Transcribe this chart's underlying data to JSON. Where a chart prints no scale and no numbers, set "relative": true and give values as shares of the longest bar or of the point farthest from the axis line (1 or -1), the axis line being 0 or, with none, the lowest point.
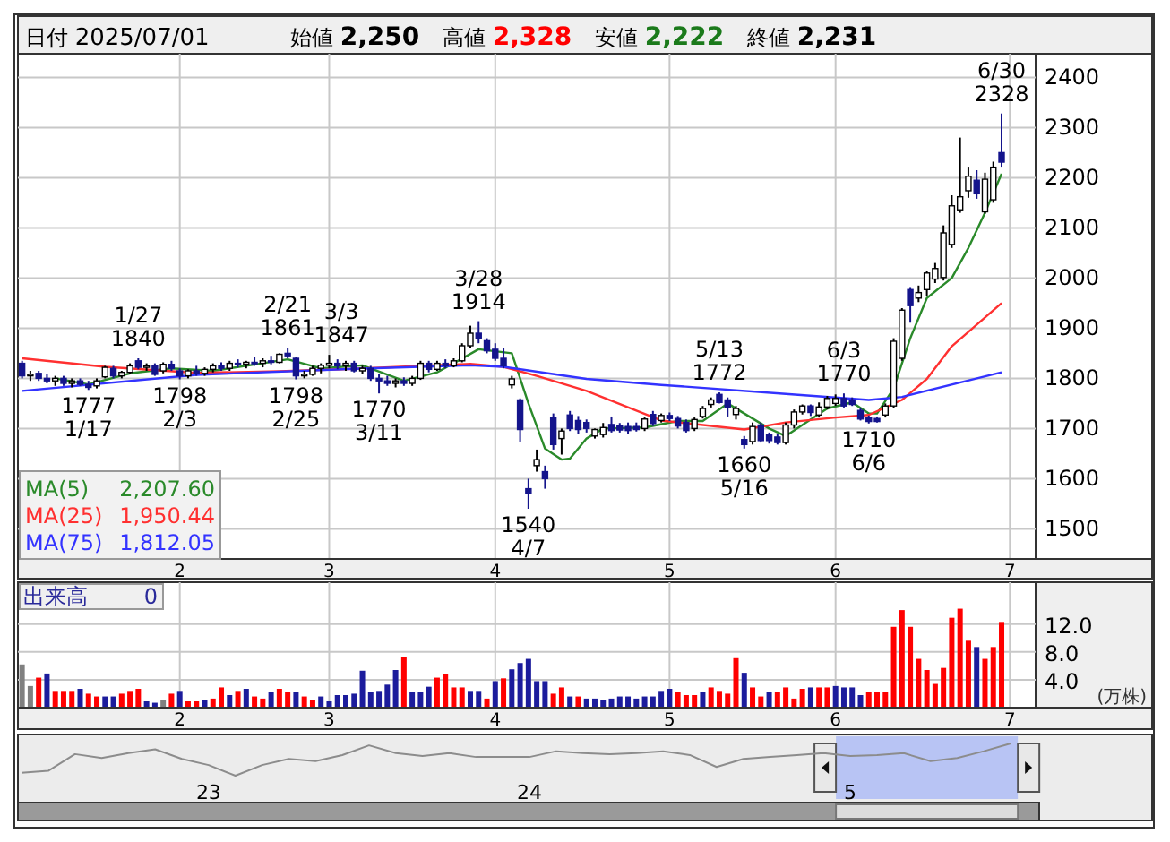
{
  "chart_data": [
    {
      "type": "candlestick",
      "categories": [
        null,
        null,
        null,
        null,
        null,
        null,
        null,
        null,
        null,
        null,
        null,
        null,
        null,
        null,
        null,
        null,
        null,
        null,
        null,
        "2",
        null,
        null,
        null,
        null,
        null,
        null,
        null,
        null,
        null,
        null,
        null,
        null,
        null,
        null,
        null,
        null,
        null,
        "3",
        null,
        null,
        null,
        null,
        null,
        null,
        null,
        null,
        null,
        null,
        null,
        null,
        null,
        null,
        null,
        null,
        null,
        null,
        null,
        "4",
        null,
        null,
        null,
        null,
        null,
        null,
        null,
        null,
        null,
        null,
        null,
        null,
        null,
        null,
        null,
        null,
        null,
        null,
        null,
        null,
        "5",
        null,
        null,
        null,
        null,
        null,
        null,
        null,
        null,
        null,
        null,
        null,
        null,
        null,
        null,
        null,
        null,
        null,
        null,
        null,
        "6",
        null,
        null,
        null,
        null,
        null,
        null,
        null,
        null,
        null,
        null,
        null,
        null,
        null,
        null,
        null,
        null,
        null,
        null,
        null,
        null,
        "7"
      ],
      "ohlc": [
        [
          1830,
          1835,
          1800,
          1805
        ],
        [
          1805,
          1815,
          1795,
          1808
        ],
        [
          1810,
          1815,
          1795,
          1800
        ],
        [
          1800,
          1808,
          1790,
          1795
        ],
        [
          1795,
          1805,
          1785,
          1800
        ],
        [
          1800,
          1805,
          1785,
          1790
        ],
        [
          1790,
          1800,
          1782,
          1795
        ],
        [
          1795,
          1800,
          1785,
          1788
        ],
        [
          1788,
          1795,
          1777,
          1782
        ],
        [
          1785,
          1800,
          1780,
          1795
        ],
        [
          1803,
          1825,
          1800,
          1822
        ],
        [
          1820,
          1825,
          1800,
          1805
        ],
        [
          1805,
          1815,
          1800,
          1812
        ],
        [
          1812,
          1830,
          1808,
          1825
        ],
        [
          1835,
          1840,
          1818,
          1822
        ],
        [
          1822,
          1830,
          1815,
          1825
        ],
        [
          1825,
          1830,
          1805,
          1808
        ],
        [
          1815,
          1832,
          1810,
          1828
        ],
        [
          1828,
          1835,
          1815,
          1820
        ],
        [
          1815,
          1820,
          1798,
          1805
        ],
        [
          1805,
          1818,
          1800,
          1815
        ],
        [
          1815,
          1825,
          1805,
          1810
        ],
        [
          1810,
          1822,
          1805,
          1818
        ],
        [
          1818,
          1830,
          1812,
          1825
        ],
        [
          1825,
          1832,
          1815,
          1820
        ],
        [
          1820,
          1835,
          1815,
          1830
        ],
        [
          1830,
          1838,
          1822,
          1828
        ],
        [
          1828,
          1835,
          1820,
          1832
        ],
        [
          1832,
          1842,
          1825,
          1830
        ],
        [
          1830,
          1840,
          1822,
          1835
        ],
        [
          1835,
          1845,
          1828,
          1832
        ],
        [
          1832,
          1850,
          1830,
          1848
        ],
        [
          1850,
          1861,
          1840,
          1845
        ],
        [
          1840,
          1842,
          1798,
          1805
        ],
        [
          1805,
          1815,
          1800,
          1808
        ],
        [
          1808,
          1825,
          1805,
          1820
        ],
        [
          1820,
          1830,
          1810,
          1826
        ],
        [
          1826,
          1847,
          1820,
          1830
        ],
        [
          1830,
          1838,
          1818,
          1825
        ],
        [
          1825,
          1835,
          1815,
          1830
        ],
        [
          1830,
          1835,
          1812,
          1815
        ],
        [
          1815,
          1825,
          1808,
          1820
        ],
        [
          1820,
          1825,
          1795,
          1800
        ],
        [
          1800,
          1808,
          1770,
          1795
        ],
        [
          1795,
          1805,
          1785,
          1790
        ],
        [
          1790,
          1800,
          1782,
          1795
        ],
        [
          1795,
          1802,
          1785,
          1790
        ],
        [
          1790,
          1805,
          1785,
          1800
        ],
        [
          1800,
          1835,
          1797,
          1830
        ],
        [
          1830,
          1835,
          1812,
          1818
        ],
        [
          1818,
          1835,
          1815,
          1830
        ],
        [
          1830,
          1838,
          1820,
          1825
        ],
        [
          1825,
          1840,
          1822,
          1835
        ],
        [
          1835,
          1870,
          1832,
          1865
        ],
        [
          1865,
          1905,
          1860,
          1890
        ],
        [
          1890,
          1914,
          1870,
          1880
        ],
        [
          1875,
          1880,
          1850,
          1855
        ],
        [
          1858,
          1870,
          1835,
          1840
        ],
        [
          1840,
          1860,
          1820,
          1825
        ],
        [
          1787,
          1805,
          1780,
          1799
        ],
        [
          1757,
          1760,
          1674,
          1698
        ],
        [
          1580,
          1600,
          1540,
          1570
        ],
        [
          1626,
          1658,
          1614,
          1638
        ],
        [
          1614,
          1626,
          1580,
          1600
        ],
        [
          1722,
          1730,
          1658,
          1668
        ],
        [
          1680,
          1700,
          1648,
          1695
        ],
        [
          1727,
          1735,
          1695,
          1700
        ],
        [
          1716,
          1725,
          1690,
          1698
        ],
        [
          1712,
          1718,
          1692,
          1700
        ],
        [
          1685,
          1700,
          1680,
          1698
        ],
        [
          1688,
          1711,
          1682,
          1702
        ],
        [
          1708,
          1724,
          1692,
          1696
        ],
        [
          1705,
          1711,
          1692,
          1697
        ],
        [
          1704,
          1712,
          1690,
          1696
        ],
        [
          1704,
          1712,
          1694,
          1698
        ],
        [
          1700,
          1722,
          1695,
          1719
        ],
        [
          1728,
          1735,
          1705,
          1710
        ],
        [
          1716,
          1730,
          1712,
          1726
        ],
        [
          1726,
          1732,
          1715,
          1720
        ],
        [
          1720,
          1725,
          1700,
          1705
        ],
        [
          1712,
          1718,
          1692,
          1696
        ],
        [
          1700,
          1722,
          1695,
          1718
        ],
        [
          1724,
          1745,
          1720,
          1740
        ],
        [
          1748,
          1762,
          1742,
          1757
        ],
        [
          1768,
          1772,
          1750,
          1752
        ],
        [
          1757,
          1762,
          1724,
          1743
        ],
        [
          1728,
          1745,
          1718,
          1740
        ],
        [
          1678,
          1685,
          1660,
          1668
        ],
        [
          1674,
          1712,
          1668,
          1704
        ],
        [
          1707,
          1712,
          1672,
          1676
        ],
        [
          1688,
          1692,
          1670,
          1676
        ],
        [
          1683,
          1690,
          1668,
          1672
        ],
        [
          1672,
          1712,
          1668,
          1707
        ],
        [
          1707,
          1738,
          1700,
          1733
        ],
        [
          1733,
          1748,
          1728,
          1745
        ],
        [
          1745,
          1748,
          1725,
          1732
        ],
        [
          1727,
          1752,
          1722,
          1743
        ],
        [
          1743,
          1765,
          1738,
          1760
        ],
        [
          1750,
          1768,
          1745,
          1760
        ],
        [
          1760,
          1770,
          1742,
          1745
        ],
        [
          1757,
          1762,
          1745,
          1748
        ],
        [
          1736,
          1740,
          1716,
          1719
        ],
        [
          1722,
          1726,
          1710,
          1714
        ],
        [
          1720,
          1724,
          1712,
          1714
        ],
        [
          1727,
          1750,
          1722,
          1745
        ],
        [
          1745,
          1880,
          1740,
          1874
        ],
        [
          1840,
          1940,
          1835,
          1936
        ],
        [
          1977,
          1982,
          1911,
          1945
        ],
        [
          1960,
          1985,
          1952,
          1971
        ],
        [
          1977,
          2015,
          1965,
          2010
        ],
        [
          1998,
          2030,
          1990,
          2019
        ],
        [
          2001,
          2105,
          1995,
          2090
        ],
        [
          2067,
          2165,
          2060,
          2144
        ],
        [
          2136,
          2280,
          2130,
          2162
        ],
        [
          2174,
          2222,
          2160,
          2203
        ],
        [
          2195,
          2215,
          2158,
          2168
        ],
        [
          2132,
          2210,
          2128,
          2197
        ],
        [
          2156,
          2232,
          2150,
          2221
        ],
        [
          2250,
          2328,
          2222,
          2231
        ],
        null
      ],
      "series": [
        {
          "name": "MA(5) 2,207.60",
          "type": "line",
          "color": "#2a8a2a",
          "values": [
            null,
            null,
            null,
            null,
            1800,
            null,
            null,
            null,
            1788,
            null,
            null,
            null,
            null,
            1810,
            null,
            null,
            null,
            null,
            1820,
            null,
            null,
            null,
            null,
            1815,
            null,
            null,
            null,
            1825,
            null,
            null,
            null,
            null,
            1838,
            null,
            null,
            null,
            1820,
            null,
            null,
            null,
            null,
            1826,
            null,
            null,
            null,
            null,
            1795,
            null,
            null,
            null,
            1812,
            null,
            null,
            null,
            null,
            1858,
            null,
            null,
            null,
            1850,
            null,
            1750,
            null,
            1660,
            null,
            1638,
            1640,
            null,
            1680,
            null,
            1700,
            null,
            null,
            null,
            null,
            1702,
            null,
            null,
            null,
            1715,
            null,
            null,
            1715,
            null,
            null,
            1750,
            null,
            1730,
            null,
            null,
            1700,
            null,
            1685,
            null,
            null,
            null,
            null,
            1740,
            null,
            null,
            1752,
            null,
            1730,
            1730,
            null,
            1780,
            null,
            1880,
            null,
            1960,
            null,
            null,
            2000,
            null,
            2060,
            null,
            2130,
            null,
            2208,
            null
          ]
        },
        {
          "name": "MA(25) 1,950.44",
          "type": "line",
          "color": "#ff3030",
          "values": [
            1840,
            null,
            null,
            null,
            null,
            null,
            null,
            null,
            null,
            null,
            1823,
            null,
            null,
            null,
            null,
            null,
            null,
            null,
            null,
            null,
            null,
            1811,
            null,
            null,
            null,
            null,
            null,
            null,
            null,
            null,
            null,
            1814,
            null,
            null,
            null,
            null,
            null,
            null,
            null,
            null,
            1819,
            null,
            null,
            null,
            null,
            null,
            null,
            null,
            null,
            null,
            null,
            null,
            null,
            null,
            1829,
            null,
            null,
            null,
            1823,
            null,
            null,
            null,
            1805,
            null,
            null,
            null,
            null,
            null,
            1775,
            null,
            null,
            null,
            null,
            null,
            null,
            null,
            null,
            1716,
            null,
            null,
            null,
            null,
            null,
            null,
            null,
            null,
            null,
            1698,
            null,
            null,
            null,
            null,
            1712,
            null,
            null,
            null,
            null,
            null,
            1722,
            null,
            null,
            null,
            1727,
            null,
            null,
            null,
            1757,
            null,
            null,
            1799,
            null,
            null,
            1864,
            null,
            null,
            null,
            null,
            null,
            1950,
            null
          ]
        },
        {
          "name": "MA(75) 1,812.05",
          "type": "line",
          "color": "#3333ff",
          "values": [
            1775,
            null,
            null,
            null,
            null,
            null,
            null,
            null,
            null,
            null,
            null,
            null,
            null,
            null,
            null,
            null,
            null,
            null,
            null,
            null,
            null,
            1807,
            null,
            null,
            null,
            null,
            null,
            null,
            null,
            null,
            null,
            null,
            null,
            null,
            null,
            null,
            null,
            null,
            null,
            null,
            1819,
            null,
            null,
            null,
            null,
            null,
            null,
            null,
            null,
            null,
            null,
            null,
            null,
            null,
            1826,
            null,
            null,
            null,
            1823,
            null,
            null,
            null,
            null,
            null,
            null,
            null,
            null,
            null,
            1799,
            null,
            null,
            null,
            null,
            null,
            null,
            null,
            null,
            1787,
            null,
            null,
            null,
            null,
            null,
            null,
            null,
            null,
            null,
            null,
            null,
            null,
            null,
            null,
            1769,
            null,
            null,
            null,
            null,
            null,
            null,
            null,
            null,
            null,
            1757,
            null,
            null,
            null,
            1763,
            null,
            null,
            null,
            null,
            null,
            null,
            null,
            null,
            null,
            null,
            null,
            1812,
            null
          ]
        }
      ],
      "ylim": [
        1440,
        2440
      ],
      "yticks": [
        1500,
        1600,
        1700,
        1800,
        1900,
        2000,
        2100,
        2200,
        2300,
        2400
      ],
      "grid": true,
      "legend": "bottom left",
      "annotations": [
        "日付 2025/07/01",
        "始値 2,250",
        "高値 2,328",
        "安値 2,222",
        "終値 2,231",
        {
          "text": "1/27\n1840",
          "y": 1840
        },
        {
          "text": "1777\n1/17",
          "y": 1777
        },
        {
          "text": "1798\n2/3",
          "y": 1798
        },
        {
          "text": "2/21\n1861",
          "y": 1861
        },
        {
          "text": "1798\n2/25",
          "y": 1798
        },
        {
          "text": "3/3\n1847",
          "y": 1847
        },
        {
          "text": "1770\n3/11",
          "y": 1770
        },
        {
          "text": "3/28\n1914",
          "y": 1914
        },
        {
          "text": "1540\n4/7",
          "y": 1540
        },
        {
          "text": "5/13\n1772",
          "y": 1772
        },
        {
          "text": "1660\n5/16",
          "y": 1660
        },
        {
          "text": "6/3\n1770",
          "y": 1770
        },
        {
          "text": "1710\n6/6",
          "y": 1710
        },
        {
          "text": "6/30\n2328",
          "y": 2328
        }
      ]
    },
    {
      "type": "bar",
      "title": "出来高",
      "annotations": [
        "0"
      ],
      "ylabel": "(万株)",
      "categories": [
        null,
        null,
        null,
        null,
        null,
        null,
        null,
        null,
        null,
        null,
        null,
        null,
        null,
        null,
        null,
        null,
        null,
        null,
        null,
        "2",
        null,
        null,
        null,
        null,
        null,
        null,
        null,
        null,
        null,
        null,
        null,
        null,
        null,
        null,
        null,
        null,
        null,
        "3",
        null,
        null,
        null,
        null,
        null,
        null,
        null,
        null,
        null,
        null,
        null,
        null,
        null,
        null,
        null,
        null,
        null,
        null,
        null,
        "4",
        null,
        null,
        null,
        null,
        null,
        null,
        null,
        null,
        null,
        null,
        null,
        null,
        null,
        null,
        null,
        null,
        null,
        null,
        null,
        null,
        "5",
        null,
        null,
        null,
        null,
        null,
        null,
        null,
        null,
        null,
        null,
        null,
        null,
        null,
        null,
        null,
        null,
        null,
        null,
        null,
        "6",
        null,
        null,
        null,
        null,
        null,
        null,
        null,
        null,
        null,
        null,
        null,
        null,
        null,
        null,
        null,
        null,
        null,
        null,
        null,
        null,
        "7"
      ],
      "values": [
        6.2,
        3.1,
        4.3,
        4.9,
        2.4,
        2.4,
        2.4,
        2.7,
        2.0,
        1.6,
        1.6,
        1.6,
        2.0,
        2.4,
        2.7,
        0.9,
        0.7,
        1.1,
        2.0,
        2.4,
        0.9,
        0.9,
        1.1,
        1.3,
        2.9,
        1.8,
        2.4,
        2.7,
        1.6,
        1.3,
        2.2,
        2.7,
        2.2,
        2.2,
        1.6,
        1.1,
        1.6,
        0.9,
        1.8,
        1.8,
        2.0,
        5.3,
        2.2,
        2.4,
        3.3,
        5.4,
        7.3,
        2.2,
        2.2,
        3.0,
        4.3,
        4.8,
        2.9,
        2.9,
        2.4,
        2.4,
        1.3,
        3.8,
        4.2,
        5.5,
        6.4,
        7.0,
        3.8,
        3.8,
        2.0,
        2.9,
        1.6,
        1.6,
        1.3,
        1.3,
        1.1,
        1.3,
        1.6,
        1.6,
        1.3,
        1.6,
        1.6,
        2.4,
        2.7,
        2.2,
        1.8,
        1.8,
        2.2,
        2.9,
        2.4,
        2.0,
        7.1,
        5.0,
        2.9,
        1.6,
        2.2,
        2.2,
        2.9,
        1.3,
        2.7,
        2.9,
        2.9,
        2.9,
        3.1,
        2.9,
        2.9,
        1.8,
        2.3,
        2.3,
        2.3,
        11.6,
        14.0,
        11.6,
        7.0,
        5.4,
        3.4,
        5.7,
        12.9,
        14.2,
        9.6,
        8.7,
        7.0,
        8.7,
        12.3,
        null
      ],
      "colors": [
        "#808080",
        "#808080",
        "#ff0000",
        "#1c1c9c",
        "#ff0000",
        "#ff0000",
        "#ff0000",
        "#1c1c9c",
        "#ff0000",
        "#ff0000",
        "#1c1c9c",
        "#1c1c9c",
        "#ff0000",
        "#ff0000",
        "#ff0000",
        "#1c1c9c",
        "#1c1c9c",
        "#808080",
        "#ff0000",
        "#1c1c9c",
        "#ff0000",
        "#ff0000",
        "#1c1c9c",
        "#ff0000",
        "#ff0000",
        "#1c1c9c",
        "#ff0000",
        "#1c1c9c",
        "#ff0000",
        "#ff0000",
        "#1c1c9c",
        "#ff0000",
        "#ff0000",
        "#1c1c9c",
        "#ff0000",
        "#ff0000",
        "#1c1c9c",
        "#1c1c9c",
        "#1c1c9c",
        "#1c1c9c",
        "#1c1c9c",
        "#1c1c9c",
        "#1c1c9c",
        "#1c1c9c",
        "#1c1c9c",
        "#1c1c9c",
        "#ff0000",
        "#1c1c9c",
        "#1c1c9c",
        "#1c1c9c",
        "#ff0000",
        "#ff0000",
        "#ff0000",
        "#ff0000",
        "#1c1c9c",
        "#1c1c9c",
        "#ff0000",
        "#1c1c9c",
        "#ff0000",
        "#1c1c9c",
        "#1c1c9c",
        "#1c1c9c",
        "#1c1c9c",
        "#1c1c9c",
        "#ff0000",
        "#ff0000",
        "#1c1c9c",
        "#ff0000",
        "#1c1c9c",
        "#1c1c9c",
        "#1c1c9c",
        "#1c1c9c",
        "#1c1c9c",
        "#1c1c9c",
        "#1c1c9c",
        "#1c1c9c",
        "#1c1c9c",
        "#1c1c9c",
        "#1c1c9c",
        "#ff0000",
        "#ff0000",
        "#ff0000",
        "#1c1c9c",
        "#ff0000",
        "#ff0000",
        "#ff0000",
        "#ff0000",
        "#1c1c9c",
        "#ff0000",
        "#ff0000",
        "#1c1c9c",
        "#ff0000",
        "#ff0000",
        "#ff0000",
        "#ff0000",
        "#1c1c9c",
        "#ff0000",
        "#ff0000",
        "#1c1c9c",
        "#1c1c9c",
        "#1c1c9c",
        "#1c1c9c",
        "#ff0000",
        "#ff0000",
        "#ff0000",
        "#ff0000",
        "#ff0000",
        "#ff0000",
        "#ff0000",
        "#ff0000",
        "#ff0000",
        "#ff0000",
        "#ff0000",
        "#ff0000",
        "#ff0000",
        "#1c1c9c",
        "#ff0000",
        "#ff0000",
        "#ff0000",
        null
      ],
      "ylim": [
        0,
        18
      ],
      "yticks": [
        {
          "value": 4,
          "label": "4.0"
        },
        {
          "value": 8,
          "label": "8.0"
        },
        {
          "value": 12,
          "label": "12.0"
        }
      ],
      "grid": true
    },
    {
      "type": "line",
      "relative": true,
      "color": "#8c8c8c",
      "categories": [
        null,
        null,
        null,
        null,
        null,
        null,
        null,
        "23",
        null,
        null,
        null,
        null,
        null,
        null,
        null,
        null,
        null,
        null,
        null,
        "24",
        null,
        null,
        null,
        null,
        null,
        null,
        null,
        null,
        null,
        null,
        null,
        "5",
        null,
        null,
        null,
        null,
        null,
        null
      ],
      "values": [
        0.09,
        0.15,
        0.67,
        0.55,
        0.7,
        0.82,
        0.52,
        0.33,
        0,
        0.33,
        0.52,
        0.45,
        0.64,
        0.94,
        0.7,
        0.61,
        0.7,
        0.58,
        0.58,
        0.58,
        0.76,
        0.7,
        0.67,
        0.7,
        0.76,
        0.64,
        0.27,
        0.52,
        0.58,
        0.64,
        0.7,
        0.61,
        0.64,
        0.7,
        0.45,
        0.55,
        0.76,
        1
      ]
    }
  ]
}
